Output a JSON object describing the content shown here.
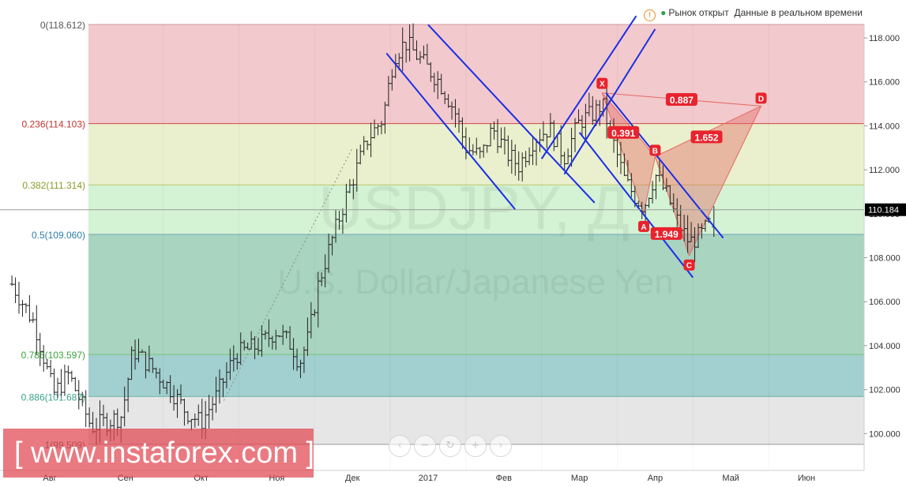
{
  "status": {
    "market_open": "Рынок открыт",
    "realtime": "Данные в реальном времени"
  },
  "watermark": {
    "symbol": "USDJPY, Д",
    "name": "U.S. Dollar/Japanese Yen"
  },
  "brand": {
    "text": "[ www.instaforex.com ]"
  },
  "nav": {
    "prev": "‹",
    "zoom_out": "−",
    "reset": "↻",
    "zoom_in": "+",
    "next": "›"
  },
  "colors": {
    "fib_0_236": "#f2c9cc",
    "fib_236_382": "#eaf0cd",
    "fib_382_5": "#d4f2d4",
    "fib_5_786": "#a8d4c0",
    "fib_786_886": "#a2cfcf",
    "fib_886_1": "#e6e6e6",
    "channel": "#1a2ee6",
    "pattern": "#e46a64",
    "pattern_label": "#e8232d",
    "price_label": "#000000"
  },
  "chart_data": {
    "type": "ohlc",
    "symbol": "USDJPY",
    "ylim": [
      99.0,
      119.2
    ],
    "y_ticks": [
      100.0,
      102.0,
      104.0,
      106.0,
      108.0,
      110.0,
      112.0,
      114.0,
      116.0,
      118.0
    ],
    "y_tick_labels": [
      "100.000",
      "102.000",
      "104.000",
      "106.000",
      "108.000",
      "110.000",
      "112.000",
      "114.000",
      "116.000",
      "118.000"
    ],
    "x_labels": [
      "Авг",
      "Сен",
      "Окт",
      "Ноя",
      "Дек",
      "2017",
      "Фев",
      "Мар",
      "Апр",
      "Май",
      "Июн"
    ],
    "current_price": 110.184,
    "current_price_label": "110.184",
    "fibonacci": [
      {
        "ratio": 0,
        "price": 118.612,
        "label": "0(118.612)"
      },
      {
        "ratio": 0.236,
        "price": 114.103,
        "label": "0.236(114.103)"
      },
      {
        "ratio": 0.382,
        "price": 111.314,
        "label": "0.382(111.314)"
      },
      {
        "ratio": 0.5,
        "price": 109.06,
        "label": "0.5(109.060)"
      },
      {
        "ratio": 0.786,
        "price": 103.597,
        "label": "0.786(103.597)"
      },
      {
        "ratio": 0.886,
        "price": 101.687,
        "label": "0.886(101.687)"
      },
      {
        "ratio": 1,
        "price": 99.509,
        "label": "1(99.509)"
      }
    ],
    "pattern_points": [
      {
        "name": "X",
        "month": 7.3,
        "price": 115.5
      },
      {
        "name": "A",
        "month": 7.85,
        "price": 110.0
      },
      {
        "name": "B",
        "month": 8.0,
        "price": 112.6
      },
      {
        "name": "C",
        "month": 8.45,
        "price": 108.1
      },
      {
        "name": "D",
        "month": 9.4,
        "price": 114.9
      }
    ],
    "ratios": [
      {
        "label": "0.887",
        "month": 8.35,
        "price": 115.2
      },
      {
        "label": "0.391",
        "month": 7.58,
        "price": 113.7
      },
      {
        "label": "1.652",
        "month": 8.68,
        "price": 113.5
      },
      {
        "label": "1.949",
        "month": 8.15,
        "price": 109.1
      }
    ],
    "channels": [
      {
        "start": {
          "month": 4.45,
          "price": 117.3
        },
        "end": {
          "month": 6.15,
          "price": 110.2
        }
      },
      {
        "start": {
          "month": 5.0,
          "price": 118.6
        },
        "end": {
          "month": 7.2,
          "price": 110.5
        }
      },
      {
        "start": {
          "month": 6.5,
          "price": 112.5
        },
        "end": {
          "month": 7.75,
          "price": 119.0
        }
      },
      {
        "start": {
          "month": 6.8,
          "price": 111.8
        },
        "end": {
          "month": 8.0,
          "price": 118.4
        }
      },
      {
        "start": {
          "month": 7.35,
          "price": 115.5
        },
        "end": {
          "month": 8.9,
          "price": 108.9
        }
      },
      {
        "start": {
          "month": 7.0,
          "price": 113.7
        },
        "end": {
          "month": 8.5,
          "price": 107.1
        }
      }
    ],
    "dotted_trend": {
      "start": {
        "month": 2.3,
        "price": 101.5
      },
      "end": {
        "month": 4.0,
        "price": 113.0
      }
    },
    "anchors": [
      {
        "month": -0.5,
        "price": 106.8
      },
      {
        "month": -0.2,
        "price": 105.0
      },
      {
        "month": 0.05,
        "price": 101.8
      },
      {
        "month": 0.25,
        "price": 102.7
      },
      {
        "month": 0.55,
        "price": 100.3
      },
      {
        "month": 0.95,
        "price": 100.8
      },
      {
        "month": 1.1,
        "price": 103.8
      },
      {
        "month": 1.35,
        "price": 103.0
      },
      {
        "month": 1.6,
        "price": 102.0
      },
      {
        "month": 1.8,
        "price": 101.0
      },
      {
        "month": 2.0,
        "price": 100.5
      },
      {
        "month": 2.2,
        "price": 101.7
      },
      {
        "month": 2.45,
        "price": 103.6
      },
      {
        "month": 2.75,
        "price": 104.0
      },
      {
        "month": 3.0,
        "price": 104.7
      },
      {
        "month": 3.2,
        "price": 104.0
      },
      {
        "month": 3.3,
        "price": 103.2
      },
      {
        "month": 3.42,
        "price": 104.4
      },
      {
        "month": 3.55,
        "price": 106.8
      },
      {
        "month": 3.7,
        "price": 108.5
      },
      {
        "month": 3.9,
        "price": 110.6
      },
      {
        "month": 4.05,
        "price": 112.0
      },
      {
        "month": 4.2,
        "price": 113.4
      },
      {
        "month": 4.4,
        "price": 114.3
      },
      {
        "month": 4.55,
        "price": 117.2
      },
      {
        "month": 4.7,
        "price": 117.8
      },
      {
        "month": 4.95,
        "price": 116.8
      },
      {
        "month": 5.15,
        "price": 116.0
      },
      {
        "month": 5.35,
        "price": 114.7
      },
      {
        "month": 5.5,
        "price": 113.0
      },
      {
        "month": 5.7,
        "price": 112.6
      },
      {
        "month": 5.85,
        "price": 113.9
      },
      {
        "month": 6.05,
        "price": 112.7
      },
      {
        "month": 6.2,
        "price": 112.2
      },
      {
        "month": 6.4,
        "price": 113.4
      },
      {
        "month": 6.6,
        "price": 113.9
      },
      {
        "month": 6.8,
        "price": 112.6
      },
      {
        "month": 7.0,
        "price": 114.2
      },
      {
        "month": 7.2,
        "price": 114.6
      },
      {
        "month": 7.3,
        "price": 115.0
      },
      {
        "month": 7.45,
        "price": 113.2
      },
      {
        "month": 7.6,
        "price": 111.5
      },
      {
        "month": 7.75,
        "price": 110.7
      },
      {
        "month": 7.85,
        "price": 110.3
      },
      {
        "month": 8.0,
        "price": 111.8
      },
      {
        "month": 8.15,
        "price": 110.9
      },
      {
        "month": 8.3,
        "price": 109.6
      },
      {
        "month": 8.45,
        "price": 108.7
      },
      {
        "month": 8.6,
        "price": 109.0
      },
      {
        "month": 8.73,
        "price": 109.6
      }
    ],
    "last_bar": {
      "open": 109.4,
      "high": 110.35,
      "low": 108.95,
      "close": 110.18
    }
  }
}
